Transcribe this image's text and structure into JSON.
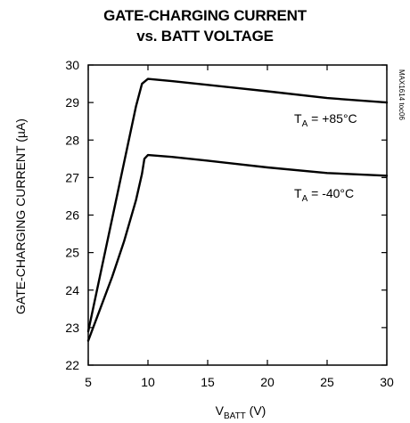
{
  "chart_data": {
    "type": "line",
    "title_line1": "GATE-CHARGING CURRENT",
    "title_line2": "vs. BATT VOLTAGE",
    "xlabel_main": "V",
    "xlabel_sub": "BATT",
    "xlabel_unit": " (V)",
    "ylabel": "GATE-CHARGING CURRENT (µA)",
    "figure_id": "MAX1614 toc06",
    "xlim": [
      5,
      30
    ],
    "ylim": [
      22,
      30
    ],
    "xticks": [
      "5",
      "10",
      "15",
      "20",
      "25",
      "30"
    ],
    "yticks": [
      "22",
      "23",
      "24",
      "25",
      "26",
      "27",
      "28",
      "29",
      "30"
    ],
    "grid": false,
    "series": [
      {
        "name_main": "T",
        "name_sub": "A",
        "name_rest": " =  +85°C",
        "x": [
          5,
          6,
          7,
          8,
          9,
          9.5,
          10,
          12,
          15,
          20,
          25,
          30
        ],
        "y": [
          22.9,
          24.4,
          25.9,
          27.4,
          28.9,
          29.5,
          29.63,
          29.57,
          29.47,
          29.3,
          29.12,
          29.0
        ]
      },
      {
        "name_main": "T",
        "name_sub": "A",
        "name_rest": " =  -40°C",
        "x": [
          5,
          6,
          7,
          8,
          9,
          9.5,
          9.7,
          10,
          12,
          15,
          20,
          25,
          30
        ],
        "y": [
          22.65,
          23.5,
          24.35,
          25.3,
          26.4,
          27.1,
          27.5,
          27.6,
          27.55,
          27.45,
          27.27,
          27.12,
          27.05
        ]
      }
    ]
  }
}
